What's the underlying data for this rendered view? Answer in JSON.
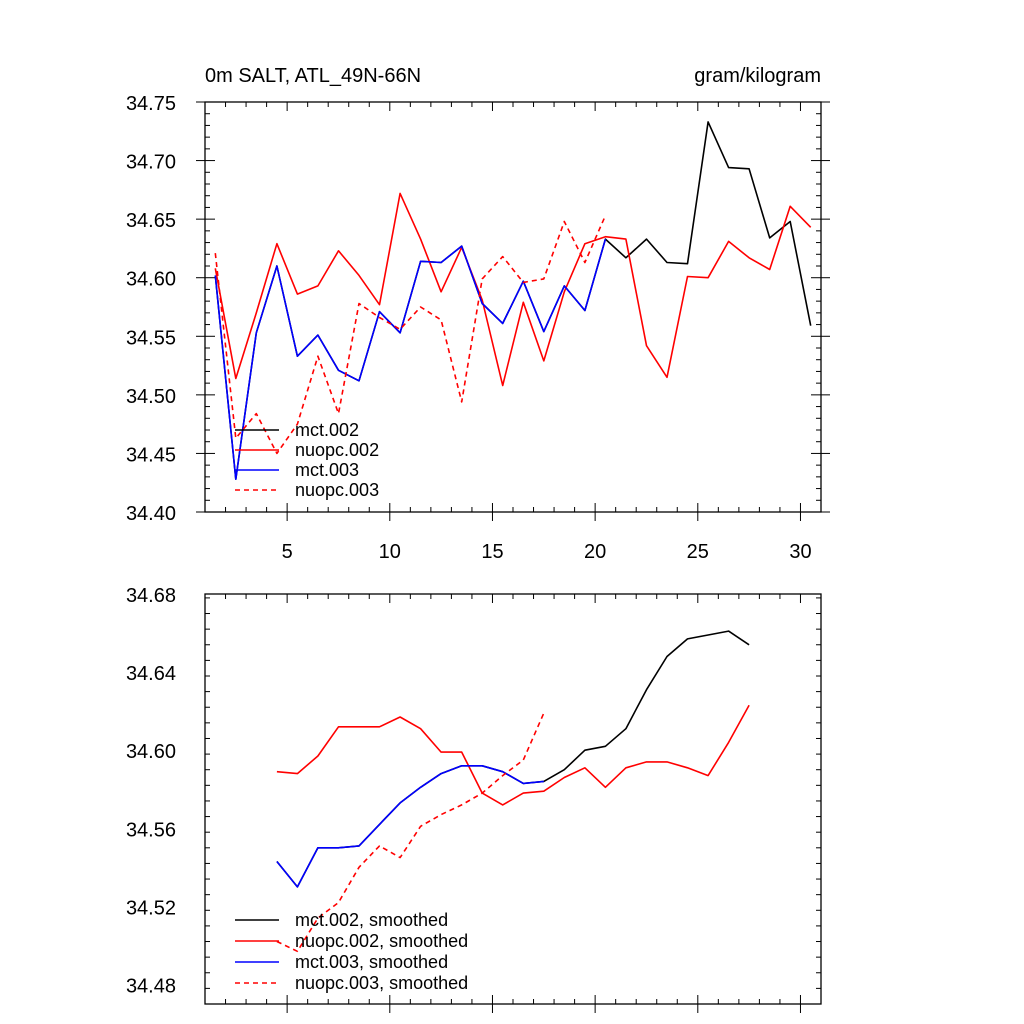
{
  "chart_data": [
    {
      "type": "line",
      "title": "0m SALT, ATL_49N-66N",
      "units": "gram/kilogram",
      "xlim": [
        1,
        31
      ],
      "ylim": [
        34.4,
        34.75
      ],
      "xticks": [
        5,
        10,
        15,
        20,
        25,
        30
      ],
      "xtick_labels": [
        "5",
        "10",
        "15",
        "20",
        "25",
        "30"
      ],
      "yticks": [
        34.4,
        34.45,
        34.5,
        34.55,
        34.6,
        34.65,
        34.7,
        34.75
      ],
      "ytick_labels": [
        "34.40",
        "34.45",
        "34.50",
        "34.55",
        "34.60",
        "34.65",
        "34.70",
        "34.75"
      ],
      "legend_position": "bottom-left",
      "series": [
        {
          "name": "mct.002",
          "color": "#000000",
          "dash": "solid",
          "x": [
            1.5,
            2.5,
            3.5,
            4.5,
            5.5,
            6.5,
            7.5,
            8.5,
            9.5,
            10.5,
            11.5,
            12.5,
            13.5,
            14.5,
            15.5,
            16.5,
            17.5,
            18.5,
            19.5,
            20.5,
            21.5,
            22.5,
            23.5,
            24.5,
            25.5,
            26.5,
            27.5,
            28.5,
            29.5,
            30.5
          ],
          "values": [
            34.602,
            34.428,
            34.553,
            34.61,
            34.533,
            34.551,
            34.521,
            34.512,
            34.571,
            34.553,
            34.614,
            34.613,
            34.627,
            34.578,
            34.561,
            34.597,
            34.554,
            34.593,
            34.572,
            34.633,
            34.617,
            34.633,
            34.613,
            34.612,
            34.733,
            34.694,
            34.693,
            34.634,
            34.648,
            34.559
          ]
        },
        {
          "name": "nuopc.002",
          "color": "#ff0000",
          "dash": "solid",
          "x": [
            1.5,
            2.5,
            3.5,
            4.5,
            5.5,
            6.5,
            7.5,
            8.5,
            9.5,
            10.5,
            11.5,
            12.5,
            13.5,
            14.5,
            15.5,
            16.5,
            17.5,
            18.5,
            19.5,
            20.5,
            21.5,
            22.5,
            23.5,
            24.5,
            25.5,
            26.5,
            27.5,
            28.5,
            29.5,
            30.5
          ],
          "values": [
            34.608,
            34.514,
            34.57,
            34.629,
            34.586,
            34.593,
            34.623,
            34.602,
            34.577,
            34.672,
            34.633,
            34.588,
            34.626,
            34.581,
            34.508,
            34.579,
            34.529,
            34.588,
            34.629,
            34.635,
            34.633,
            34.542,
            34.515,
            34.601,
            34.6,
            34.631,
            34.617,
            34.607,
            34.661,
            34.643
          ]
        },
        {
          "name": "mct.003",
          "color": "#0000ff",
          "dash": "solid",
          "x": [
            1.5,
            2.5,
            3.5,
            4.5,
            5.5,
            6.5,
            7.5,
            8.5,
            9.5,
            10.5,
            11.5,
            12.5,
            13.5,
            14.5,
            15.5,
            16.5,
            17.5,
            18.5,
            19.5,
            20.5
          ],
          "values": [
            34.602,
            34.428,
            34.553,
            34.61,
            34.533,
            34.551,
            34.521,
            34.512,
            34.571,
            34.553,
            34.614,
            34.613,
            34.627,
            34.578,
            34.561,
            34.597,
            34.554,
            34.593,
            34.572,
            34.633
          ]
        },
        {
          "name": "nuopc.003",
          "color": "#ff0000",
          "dash": "dashed",
          "x": [
            1.5,
            2.5,
            3.5,
            4.5,
            5.5,
            6.5,
            7.5,
            8.5,
            9.5,
            10.5,
            11.5,
            12.5,
            13.5,
            14.5,
            15.5,
            16.5,
            17.5,
            18.5,
            19.5,
            20.5
          ],
          "values": [
            34.621,
            34.463,
            34.484,
            34.45,
            34.475,
            34.533,
            34.484,
            34.578,
            34.566,
            34.556,
            34.575,
            34.564,
            34.494,
            34.599,
            34.618,
            34.596,
            34.599,
            34.648,
            34.613,
            34.653
          ]
        }
      ]
    },
    {
      "type": "line",
      "xlim": [
        1,
        31
      ],
      "ylim": [
        34.47,
        34.68
      ],
      "xticks": [
        5,
        10,
        15,
        20,
        25,
        30
      ],
      "yticks": [
        34.48,
        34.52,
        34.56,
        34.6,
        34.64,
        34.68
      ],
      "ytick_labels": [
        "34.48",
        "34.52",
        "34.56",
        "34.60",
        "34.64",
        "34.68"
      ],
      "legend_position": "bottom-left",
      "series": [
        {
          "name": "mct.002, smoothed",
          "color": "#000000",
          "dash": "solid",
          "x": [
            4.5,
            5.5,
            6.5,
            7.5,
            8.5,
            9.5,
            10.5,
            11.5,
            12.5,
            13.5,
            14.5,
            15.5,
            16.5,
            17.5,
            18.5,
            19.5,
            20.5,
            21.5,
            22.5,
            23.5,
            24.5,
            25.5,
            26.5,
            27.5
          ],
          "values": [
            34.543,
            34.53,
            34.55,
            34.55,
            34.551,
            34.562,
            34.573,
            34.581,
            34.588,
            34.592,
            34.592,
            34.589,
            34.583,
            34.584,
            34.59,
            34.6,
            34.602,
            34.611,
            34.631,
            34.648,
            34.657,
            34.659,
            34.661,
            34.654
          ]
        },
        {
          "name": "nuopc.002, smoothed",
          "color": "#ff0000",
          "dash": "solid",
          "x": [
            4.5,
            5.5,
            6.5,
            7.5,
            8.5,
            9.5,
            10.5,
            11.5,
            12.5,
            13.5,
            14.5,
            15.5,
            16.5,
            17.5,
            18.5,
            19.5,
            20.5,
            21.5,
            22.5,
            23.5,
            24.5,
            25.5,
            26.5,
            27.5
          ],
          "values": [
            34.589,
            34.588,
            34.597,
            34.612,
            34.612,
            34.612,
            34.617,
            34.611,
            34.599,
            34.599,
            34.578,
            34.572,
            34.578,
            34.579,
            34.586,
            34.591,
            34.581,
            34.591,
            34.594,
            34.594,
            34.591,
            34.587,
            34.604,
            34.623
          ]
        },
        {
          "name": "mct.003, smoothed",
          "color": "#0000ff",
          "dash": "solid",
          "x": [
            4.5,
            5.5,
            6.5,
            7.5,
            8.5,
            9.5,
            10.5,
            11.5,
            12.5,
            13.5,
            14.5,
            15.5,
            16.5,
            17.5
          ],
          "values": [
            34.543,
            34.53,
            34.55,
            34.55,
            34.551,
            34.562,
            34.573,
            34.581,
            34.588,
            34.592,
            34.592,
            34.589,
            34.583,
            34.584
          ]
        },
        {
          "name": "nuopc.003, smoothed",
          "color": "#ff0000",
          "dash": "dashed",
          "x": [
            4.5,
            5.5,
            6.5,
            7.5,
            8.5,
            9.5,
            10.5,
            11.5,
            12.5,
            13.5,
            14.5,
            15.5,
            16.5,
            17.5
          ],
          "values": [
            34.502,
            34.497,
            34.514,
            34.522,
            34.54,
            34.551,
            34.545,
            34.561,
            34.567,
            34.572,
            34.578,
            34.587,
            34.595,
            34.619
          ]
        }
      ]
    }
  ]
}
